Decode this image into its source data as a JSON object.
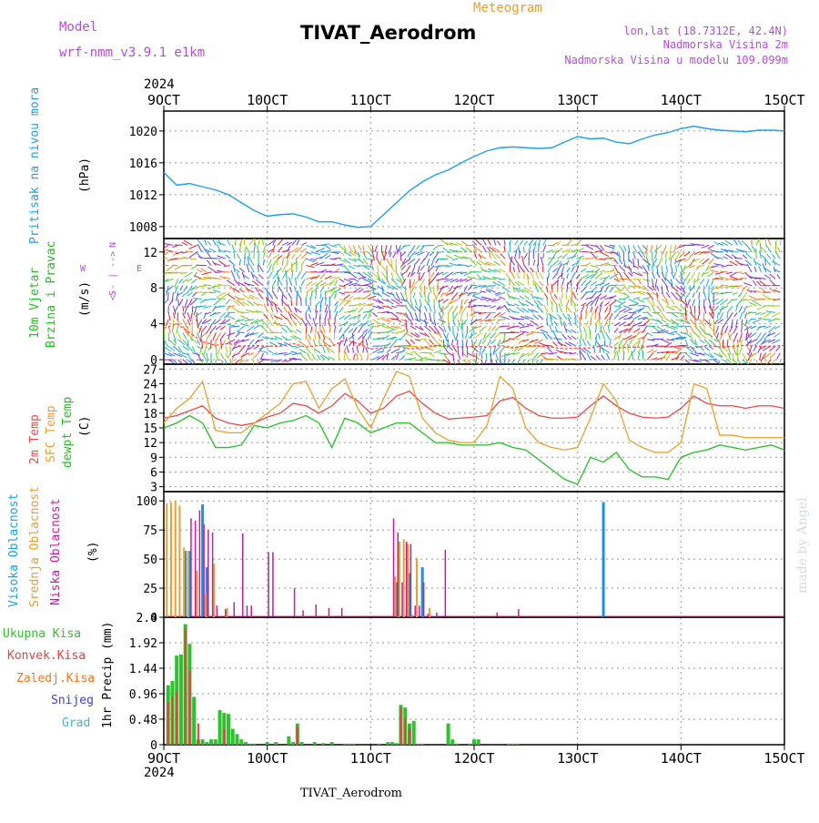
{
  "header": {
    "model_label": "Model",
    "model_version": "wrf-nmm_v3.9.1 e1km",
    "station": "TIVAT_Aerodrom",
    "meteogram_label": "Meteogram",
    "lonlat": "lon,lat (18.7312E, 42.4N)",
    "elevation": "Nadmorska Visina 2m",
    "model_elevation": "Nadmorska Visina u modelu 109.099m",
    "year": "2024",
    "footer_station": "TIVAT_Aerodrom",
    "watermark": "made by Angel"
  },
  "colors": {
    "pressure": "#1ea0e6",
    "temp2m": "#e84a4a",
    "sfc": "#e8a030",
    "dew": "#22c022",
    "high_cloud": "#1e90e0",
    "mid_cloud": "#e8a030",
    "low_cloud": "#c020a0",
    "wind_label": "#22c022",
    "purple": "#b050d0",
    "total_precip": "#30c030",
    "conv_precip": "#e84040",
    "frozen": "#f07820",
    "snow": "#4040d0",
    "grad": "#30c0c0"
  },
  "x_axis": {
    "ticks": [
      "9OCT",
      "10OCT",
      "11OCT",
      "12OCT",
      "13OCT",
      "14OCT",
      "15OCT"
    ],
    "start": "2024-10-09T00:00",
    "end": "2024-10-15T00:00"
  },
  "wind_legend": {
    "north": "N",
    "south": "S",
    "west": "W",
    "east": "E",
    "arrows": "<-- | -->",
    "title_line1": "10m Vjetar",
    "title_line2": "Brzina i Pravac",
    "unit": "(m/s)"
  },
  "chart_data": [
    {
      "type": "line",
      "title": "Pritisak na nivou mora",
      "ylabel": "(hPa)",
      "ylim": [
        1006.5,
        1022.5
      ],
      "yticks": [
        1008,
        1012,
        1016,
        1020
      ],
      "x": [
        0,
        3,
        6,
        9,
        12,
        15,
        18,
        21,
        24,
        27,
        30,
        33,
        36,
        39,
        42,
        45,
        48,
        51,
        54,
        57,
        60,
        63,
        66,
        69,
        72,
        75,
        78,
        81,
        84,
        87,
        90,
        93,
        96,
        99,
        102,
        105,
        108,
        111,
        114,
        117,
        120,
        123,
        126,
        129,
        132,
        135,
        138,
        141,
        144
      ],
      "series": [
        {
          "name": "Pritisak na nivou mora",
          "values": [
            1014.8,
            1013.2,
            1013.4,
            1013.0,
            1012.6,
            1012.0,
            1011.0,
            1010.0,
            1009.3,
            1009.5,
            1009.6,
            1009.2,
            1008.6,
            1008.6,
            1008.2,
            1007.9,
            1008.0,
            1009.5,
            1011.0,
            1012.5,
            1013.6,
            1014.5,
            1015.1,
            1016.0,
            1016.8,
            1017.5,
            1017.9,
            1018.0,
            1017.9,
            1017.8,
            1017.9,
            1018.6,
            1019.3,
            1019.0,
            1019.1,
            1018.6,
            1018.4,
            1019.0,
            1019.5,
            1019.8,
            1020.3,
            1020.6,
            1020.3,
            1020.1,
            1020.0,
            1019.9,
            1020.1,
            1020.1,
            1020.0
          ]
        }
      ]
    },
    {
      "type": "vector",
      "title": "10m Vjetar Brzina i Pravac",
      "ylabel": "(m/s)",
      "ylim": [
        -0.5,
        13.5
      ],
      "yticks": [
        0,
        4,
        8,
        12
      ],
      "x": [
        0,
        3,
        6,
        9,
        12,
        15,
        18,
        21,
        24,
        27,
        30,
        33,
        36,
        39,
        42,
        45,
        48,
        51,
        54,
        57,
        60,
        63,
        66,
        69,
        72,
        75,
        78,
        81,
        84,
        87,
        90,
        93,
        96,
        99,
        102,
        105,
        108,
        111,
        114,
        117,
        120,
        123,
        126,
        129,
        132,
        135,
        138,
        141,
        144
      ],
      "speed": [
        3.5,
        4.0,
        3.0,
        2.0,
        1.6,
        1.8,
        1.5,
        1.6,
        1.5,
        1.5,
        1.8,
        1.4,
        1.6,
        1.5,
        2.2,
        1.8,
        1.2,
        1.3,
        1.5,
        1.2,
        1.3,
        1.6,
        1.6,
        1.4,
        1.5,
        1.4,
        1.6,
        1.3,
        1.6,
        1.5,
        1.4,
        1.2,
        1.3,
        1.3,
        1.6,
        1.3,
        1.4,
        1.4,
        1.5,
        1.4,
        1.5,
        1.3,
        1.6,
        1.4,
        1.5,
        1.6,
        1.5,
        1.5,
        1.6
      ]
    },
    {
      "type": "line",
      "title": "2m Temp / SFC Temp / dewpt Temp",
      "ylabel": "(C)",
      "ylim": [
        2,
        28
      ],
      "yticks": [
        3,
        6,
        9,
        12,
        15,
        18,
        21,
        24,
        27
      ],
      "x": [
        0,
        3,
        6,
        9,
        12,
        15,
        18,
        21,
        24,
        27,
        30,
        33,
        36,
        39,
        42,
        45,
        48,
        51,
        54,
        57,
        60,
        63,
        66,
        69,
        72,
        75,
        78,
        81,
        84,
        87,
        90,
        93,
        96,
        99,
        102,
        105,
        108,
        111,
        114,
        117,
        120,
        123,
        126,
        129,
        132,
        135,
        138,
        141,
        144
      ],
      "series": [
        {
          "name": "2m Temp",
          "values": [
            17.0,
            17.5,
            18.5,
            19.5,
            17.0,
            16.0,
            15.5,
            16.0,
            17.2,
            18.0,
            20.0,
            19.5,
            18.0,
            19.5,
            22.0,
            20.5,
            18.0,
            19.0,
            21.5,
            22.5,
            20.0,
            18.0,
            16.8,
            17.0,
            17.2,
            17.5,
            20.5,
            21.2,
            19.0,
            17.5,
            17.0,
            17.0,
            17.2,
            19.5,
            21.5,
            19.5,
            18.0,
            17.2,
            17.0,
            17.2,
            19.0,
            21.5,
            20.0,
            19.5,
            19.5,
            19.0,
            19.5,
            19.5,
            19.0
          ]
        },
        {
          "name": "SFC Temp",
          "values": [
            16.0,
            19.0,
            21.0,
            24.5,
            14.5,
            14.0,
            14.0,
            16.0,
            18.0,
            20.0,
            24.0,
            24.5,
            19.0,
            23.0,
            25.0,
            19.0,
            15.0,
            21.0,
            26.5,
            25.5,
            17.0,
            14.0,
            12.5,
            12.0,
            12.0,
            15.5,
            25.5,
            23.0,
            15.0,
            12.0,
            11.0,
            10.5,
            11.0,
            17.0,
            24.0,
            20.5,
            12.5,
            11.0,
            10.0,
            10.0,
            12.0,
            24.0,
            23.0,
            13.5,
            13.5,
            13.0,
            13.0,
            13.0,
            13.0
          ]
        },
        {
          "name": "dewpt Temp",
          "values": [
            15.0,
            16.0,
            17.5,
            16.0,
            11.0,
            11.0,
            11.5,
            15.5,
            15.0,
            16.0,
            16.5,
            17.5,
            16.0,
            11.0,
            17.0,
            16.0,
            14.0,
            15.0,
            16.0,
            16.0,
            14.0,
            12.0,
            12.0,
            11.5,
            11.5,
            11.5,
            12.0,
            11.0,
            10.5,
            8.5,
            6.5,
            4.5,
            3.5,
            9.0,
            8.0,
            10.0,
            6.5,
            5.0,
            5.0,
            4.5,
            9.0,
            10.0,
            10.5,
            11.5,
            11.0,
            10.5,
            11.0,
            11.5,
            10.5
          ]
        }
      ]
    },
    {
      "type": "bar",
      "title": "Visoka Oblacnost / Srednja Oblacnost / Niska Oblacnost",
      "ylabel": "(%)",
      "ylim": [
        0,
        108
      ],
      "yticks": [
        0,
        25,
        50,
        75,
        100
      ],
      "series": [
        {
          "name": "Visoka Oblacnost",
          "x": [
            5,
            6,
            9,
            10,
            54,
            57,
            60,
            102
          ],
          "values": [
            57,
            57,
            97,
            43,
            30,
            38,
            43,
            99
          ]
        },
        {
          "name": "Srednja Oblacnost",
          "x": [
            1,
            2,
            3,
            4,
            5,
            6,
            8,
            10,
            12,
            15,
            54,
            55,
            56,
            57,
            58,
            59,
            62
          ],
          "values": [
            98,
            99,
            100,
            96,
            60,
            57,
            40,
            20,
            46,
            8,
            35,
            65,
            67,
            63,
            2,
            51,
            8
          ]
        },
        {
          "name": "Niska Oblacnost",
          "x": [
            6,
            7,
            8,
            9,
            10,
            11,
            12,
            14,
            16,
            18,
            19,
            20,
            24,
            25,
            30,
            32,
            35,
            38,
            41,
            53,
            54,
            55,
            56,
            57,
            58,
            59,
            60,
            61,
            63,
            65,
            72,
            77,
            82
          ],
          "values": [
            85,
            83,
            92,
            80,
            75,
            73,
            10,
            7,
            13,
            72,
            10,
            10,
            56,
            56,
            25,
            6,
            11,
            8,
            8,
            85,
            73,
            30,
            65,
            63,
            10,
            10,
            30,
            3,
            4,
            58,
            1,
            4,
            7
          ]
        }
      ]
    },
    {
      "type": "bar",
      "title": "1hr Precip",
      "ylabel": "1hr Precip (mm)",
      "ylim": [
        0,
        2.4
      ],
      "yticks": [
        0,
        0.48,
        0.96,
        1.44,
        1.92,
        2.4
      ],
      "legend": [
        "Ukupna Kisa",
        "Konvek.Kisa",
        "Zaledj.Kisa",
        "Snijeg",
        "Grad"
      ],
      "series": [
        {
          "name": "Ukupna Kisa",
          "x": [
            1,
            2,
            3,
            4,
            5,
            6,
            7,
            8,
            9,
            10,
            11,
            12,
            13,
            14,
            15,
            16,
            17,
            18,
            19,
            20,
            21,
            24,
            26,
            29,
            30,
            31,
            32,
            35,
            37,
            39,
            42,
            43,
            44,
            50,
            52,
            53,
            54,
            55,
            56,
            57,
            58,
            59,
            60,
            66,
            67,
            68,
            71,
            72,
            73,
            80,
            81,
            82
          ],
          "values": [
            1.12,
            1.2,
            1.68,
            1.7,
            2.27,
            1.9,
            0.9,
            0.1,
            0.1,
            0.05,
            0.1,
            0.1,
            0.65,
            0.6,
            0.58,
            0.3,
            0.2,
            0.1,
            0.05,
            0.02,
            0.02,
            0.05,
            0.05,
            0.16,
            0.05,
            0.4,
            0.05,
            0.05,
            0.03,
            0.05,
            0.02,
            0.02,
            0.02,
            0.02,
            0.05,
            0.05,
            0.03,
            0.75,
            0.7,
            0.4,
            0.45,
            0.02,
            0.02,
            0.4,
            0.1,
            0.02,
            0.02,
            0.1,
            0.1,
            0.02,
            0.02,
            0.02
          ]
        },
        {
          "name": "Konvek.Kisa",
          "x": [
            1,
            2,
            3,
            5,
            6,
            8,
            14,
            31,
            55,
            56,
            57
          ],
          "values": [
            0.8,
            0.9,
            1.0,
            2.2,
            1.4,
            0.4,
            0.3,
            0.35,
            0.7,
            0.5,
            0.3
          ]
        }
      ]
    }
  ]
}
